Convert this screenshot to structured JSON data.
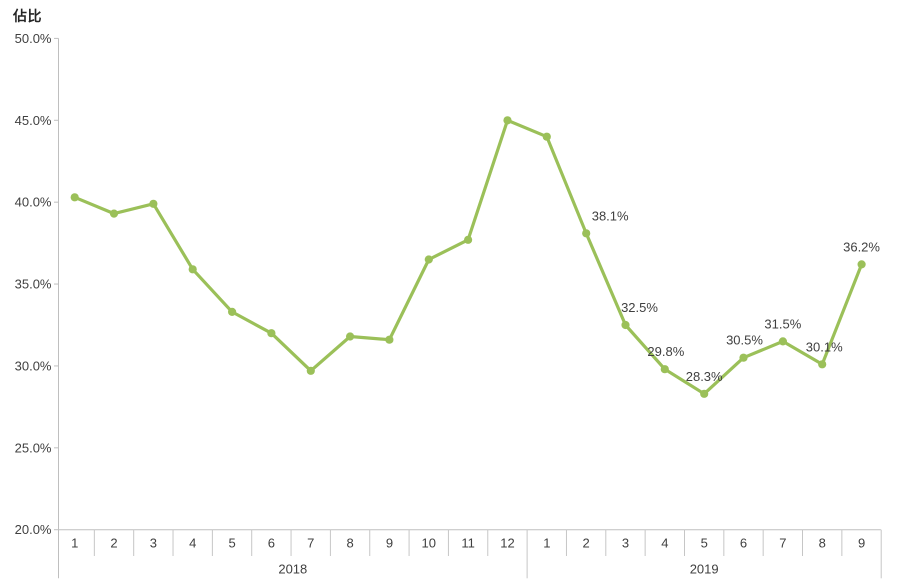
{
  "title": "佔比",
  "colors": {
    "line": "#9BC059",
    "marker": "#9BC059",
    "axis_line": "#BFBFBF",
    "separator": "#C6C6C6",
    "tick_text": "#404040",
    "data_label_text": "#404040",
    "year_text": "#404040",
    "title_text": "#262626",
    "background": "#FFFFFF"
  },
  "chart_data": {
    "type": "line",
    "title": "佔比",
    "xlabel": "",
    "ylabel": "佔比",
    "ylim": [
      20,
      50
    ],
    "grid": false,
    "legend": "none",
    "y_ticks": [
      {
        "value": 50,
        "label": "50.0%"
      },
      {
        "value": 45,
        "label": "45.0%"
      },
      {
        "value": 40,
        "label": "40.0%"
      },
      {
        "value": 35,
        "label": "35.0%"
      },
      {
        "value": 30,
        "label": "30.0%"
      },
      {
        "value": 25,
        "label": "25.0%"
      },
      {
        "value": 20,
        "label": "20.0%"
      }
    ],
    "x_groups": [
      {
        "year": "2018",
        "months": [
          "1",
          "2",
          "3",
          "4",
          "5",
          "6",
          "7",
          "8",
          "9",
          "10",
          "11",
          "12"
        ]
      },
      {
        "year": "2019",
        "months": [
          "1",
          "2",
          "3",
          "4",
          "5",
          "6",
          "7",
          "8",
          "9"
        ]
      }
    ],
    "series": [
      {
        "name": "佔比",
        "values": [
          40.3,
          39.3,
          39.9,
          35.9,
          33.3,
          32.0,
          29.7,
          31.8,
          31.6,
          36.5,
          37.7,
          45.0,
          44.0,
          38.1,
          32.5,
          29.8,
          28.3,
          30.5,
          31.5,
          30.1,
          36.2
        ],
        "point_labels": [
          null,
          null,
          null,
          null,
          null,
          null,
          null,
          null,
          null,
          null,
          null,
          null,
          null,
          "38.1%",
          "32.5%",
          "29.8%",
          "28.3%",
          "30.5%",
          "31.5%",
          "30.1%",
          "36.2%"
        ],
        "point_label_dx": [
          0,
          0,
          0,
          0,
          0,
          0,
          0,
          0,
          0,
          0,
          0,
          0,
          0,
          24,
          14,
          1,
          0,
          1,
          0,
          2,
          0
        ]
      }
    ]
  }
}
